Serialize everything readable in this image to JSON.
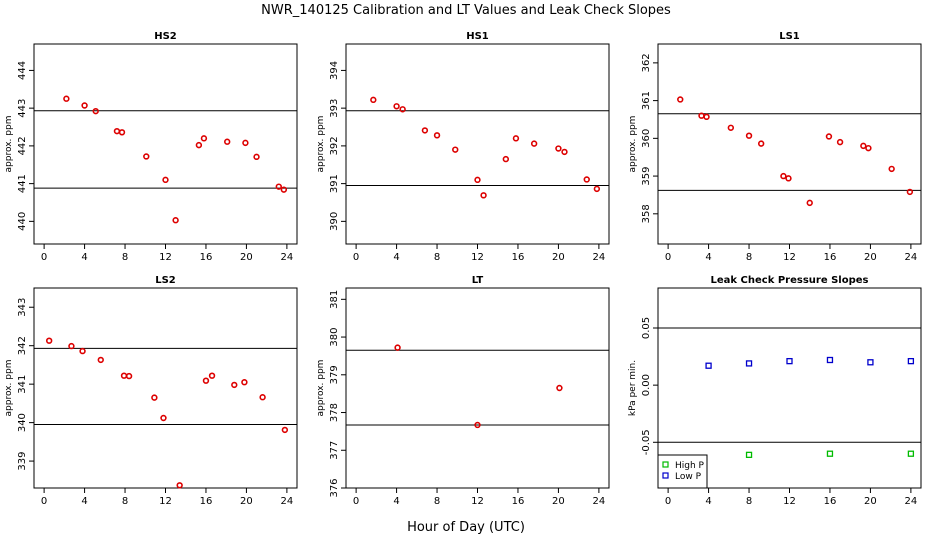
{
  "figure": {
    "title": "NWR_140125  Calibration and LT Values and Leak Check Slopes",
    "xlabel": "Hour of Day (UTC)"
  },
  "colors": {
    "ref": "#dd0000",
    "high": "#00bb00",
    "low": "#0000cc"
  },
  "chart_data": [
    {
      "type": "scatter",
      "title": "HS2",
      "ylabel": "approx. ppm",
      "xlim": [
        -1,
        25
      ],
      "ylim": [
        439.4,
        444.7
      ],
      "xticks": [
        0,
        4,
        8,
        12,
        16,
        20,
        24
      ],
      "yticks": [
        440,
        441,
        442,
        443,
        444
      ],
      "hlines": [
        442.93,
        440.88
      ],
      "series": [
        {
          "name": "ref",
          "marker": "circle",
          "color": "#dd0000",
          "x": [
            2.2,
            4.0,
            5.1,
            7.2,
            7.7,
            10.1,
            12.0,
            13.0,
            15.3,
            15.8,
            18.1,
            19.9,
            21.0,
            23.2,
            23.7
          ],
          "y": [
            443.25,
            443.07,
            442.92,
            442.39,
            442.36,
            441.72,
            441.1,
            440.03,
            442.02,
            442.2,
            442.11,
            442.08,
            441.71,
            440.92,
            440.84
          ]
        }
      ]
    },
    {
      "type": "scatter",
      "title": "HS1",
      "ylabel": "approx. ppm",
      "xlim": [
        -1,
        25
      ],
      "ylim": [
        389.4,
        394.7
      ],
      "xticks": [
        0,
        4,
        8,
        12,
        16,
        20,
        24
      ],
      "yticks": [
        390,
        391,
        392,
        393,
        394
      ],
      "hlines": [
        392.93,
        390.95
      ],
      "series": [
        {
          "name": "ref",
          "marker": "circle",
          "color": "#dd0000",
          "x": [
            1.7,
            4.0,
            4.6,
            6.8,
            8.0,
            9.8,
            12.0,
            12.6,
            14.8,
            15.8,
            17.6,
            20.0,
            20.6,
            22.8,
            23.8
          ],
          "y": [
            393.22,
            393.05,
            392.97,
            392.41,
            392.28,
            391.9,
            391.1,
            390.69,
            391.65,
            392.2,
            392.06,
            391.93,
            391.84,
            391.11,
            390.86
          ]
        }
      ]
    },
    {
      "type": "scatter",
      "title": "LS1",
      "ylabel": "approx. ppm",
      "xlim": [
        -1,
        25
      ],
      "ylim": [
        357.2,
        362.5
      ],
      "xticks": [
        0,
        4,
        8,
        12,
        16,
        20,
        24
      ],
      "yticks": [
        358,
        359,
        360,
        361,
        362
      ],
      "hlines": [
        360.65,
        358.62
      ],
      "series": [
        {
          "name": "ref",
          "marker": "circle",
          "color": "#dd0000",
          "x": [
            1.2,
            3.3,
            3.8,
            6.2,
            8.0,
            9.2,
            11.4,
            11.9,
            14.0,
            15.9,
            17.0,
            19.3,
            19.8,
            22.1,
            23.9
          ],
          "y": [
            361.03,
            360.6,
            360.57,
            360.28,
            360.07,
            359.86,
            359.0,
            358.94,
            358.29,
            360.05,
            359.9,
            359.8,
            359.74,
            359.19,
            358.58
          ]
        }
      ]
    },
    {
      "type": "scatter",
      "title": "LS2",
      "ylabel": "approx. ppm",
      "xlim": [
        -1,
        25
      ],
      "ylim": [
        338.3,
        343.5
      ],
      "xticks": [
        0,
        4,
        8,
        12,
        16,
        20,
        24
      ],
      "yticks": [
        339,
        340,
        341,
        342,
        343
      ],
      "hlines": [
        341.93,
        339.95
      ],
      "series": [
        {
          "name": "ref",
          "marker": "circle",
          "color": "#dd0000",
          "x": [
            0.5,
            2.7,
            3.8,
            5.6,
            7.9,
            8.4,
            10.9,
            11.8,
            13.4,
            16.0,
            16.6,
            18.8,
            19.8,
            21.6,
            23.8
          ],
          "y": [
            342.13,
            341.99,
            341.86,
            341.63,
            341.22,
            341.21,
            340.65,
            340.12,
            338.37,
            341.09,
            341.22,
            340.98,
            341.05,
            340.66,
            339.81
          ]
        }
      ]
    },
    {
      "type": "scatter",
      "title": "LT",
      "ylabel": "approx. ppm",
      "xlim": [
        -1,
        25
      ],
      "ylim": [
        376.0,
        381.3
      ],
      "xticks": [
        0,
        4,
        8,
        12,
        16,
        20,
        24
      ],
      "yticks": [
        376,
        377,
        378,
        379,
        380,
        381
      ],
      "hlines": [
        379.65,
        377.67
      ],
      "series": [
        {
          "name": "ref",
          "marker": "circle",
          "color": "#dd0000",
          "x": [
            4.1,
            12.0,
            20.1
          ],
          "y": [
            379.72,
            377.67,
            378.65
          ]
        }
      ]
    },
    {
      "type": "scatter",
      "title": "Leak Check Pressure Slopes",
      "ylabel": "kPa per min.",
      "xlim": [
        -1,
        25
      ],
      "ylim": [
        -0.09,
        0.085
      ],
      "xticks": [
        0,
        4,
        8,
        12,
        16,
        20,
        24
      ],
      "yticks": [
        -0.05,
        0.0,
        0.05
      ],
      "ytick_labels": [
        "-0.05",
        "0.00",
        "0.05"
      ],
      "hlines": [
        0.05,
        -0.05
      ],
      "legend": {
        "position": "bottom-left",
        "entries": [
          "High P",
          "Low P"
        ]
      },
      "series": [
        {
          "name": "High P",
          "marker": "square",
          "color": "#00bb00",
          "x": [
            8,
            16,
            24
          ],
          "y": [
            -0.061,
            -0.06,
            -0.06
          ]
        },
        {
          "name": "Low P",
          "marker": "square",
          "color": "#0000cc",
          "x": [
            4,
            8,
            12,
            16,
            20,
            24
          ],
          "y": [
            0.017,
            0.019,
            0.021,
            0.022,
            0.02,
            0.021
          ]
        }
      ]
    }
  ]
}
